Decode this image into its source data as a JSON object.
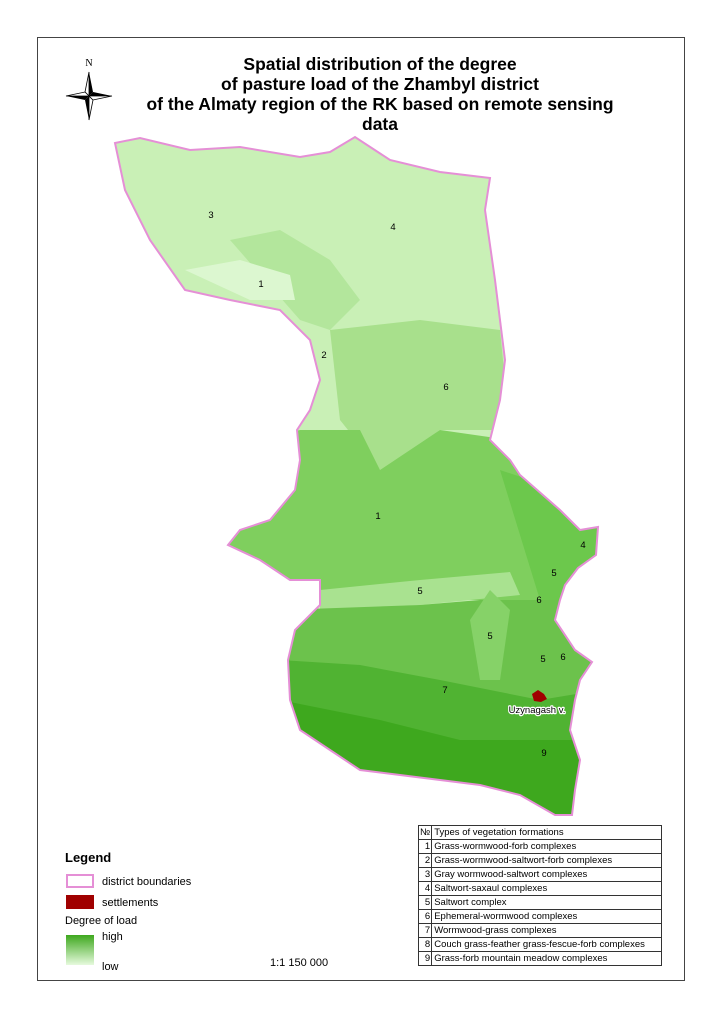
{
  "title": [
    "Spatial distribution of the degree",
    "of pasture load of the Zhambyl district",
    "of the Almaty region of the RK based on remote sensing data"
  ],
  "north_label": "N",
  "zone_labels": [
    {
      "text": "3"
    },
    {
      "text": "4"
    },
    {
      "text": "1"
    },
    {
      "text": "2"
    },
    {
      "text": "6"
    },
    {
      "text": "1"
    },
    {
      "text": "4"
    },
    {
      "text": "5"
    },
    {
      "text": "5"
    },
    {
      "text": "6"
    },
    {
      "text": "5"
    },
    {
      "text": "5"
    },
    {
      "text": "6"
    },
    {
      "text": "7"
    },
    {
      "text": "9"
    }
  ],
  "settlement_label": "Uzynagash v.",
  "legend": {
    "title": "Legend",
    "district_boundaries": "district boundaries",
    "settlements": "settlements",
    "degree_title": "Degree of load",
    "high": "high",
    "low": "low"
  },
  "scale": "1:1 150 000",
  "table": {
    "header_no": "№",
    "header_type": "Types of vegetation formations",
    "rows": [
      {
        "n": "1",
        "type": "Grass-wormwood-forb complexes"
      },
      {
        "n": "2",
        "type": "Grass-wormwood-saltwort-forb complexes"
      },
      {
        "n": "3",
        "type": "Gray wormwood-saltwort complexes"
      },
      {
        "n": "4",
        "type": "Saltwort-saxaul complexes"
      },
      {
        "n": "5",
        "type": "Saltwort complex"
      },
      {
        "n": "6",
        "type": "Ephemeral-wormwood complexes"
      },
      {
        "n": "7",
        "type": "Wormwood-grass complexes"
      },
      {
        "n": "8",
        "type": "Couch grass-feather grass-fescue-forb complexes"
      },
      {
        "n": "9",
        "type": "Grass-forb mountain meadow complexes"
      }
    ]
  },
  "colors": {
    "boundary": "#e58fd6",
    "settlement": "#a00000",
    "high": "#3ea81e",
    "low": "#d6f5c8"
  }
}
